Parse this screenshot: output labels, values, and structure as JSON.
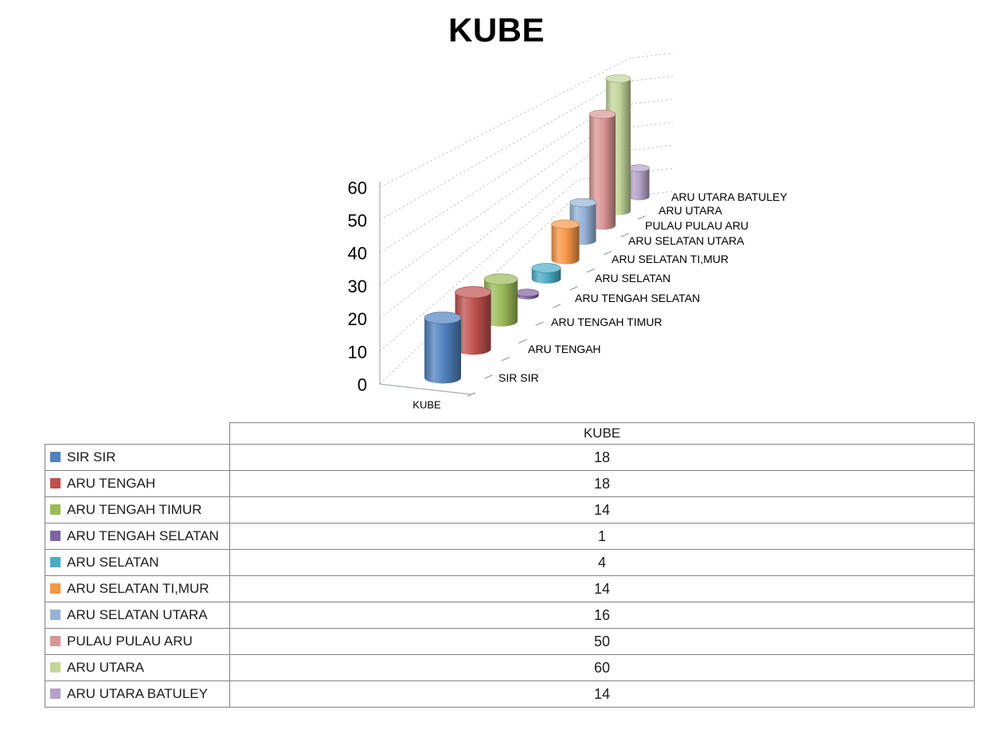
{
  "page": {
    "background": "#ffffff"
  },
  "chart_data": {
    "type": "bar",
    "style": "3d-cylinder",
    "title": "KUBE",
    "series": [
      {
        "name": "KUBE",
        "values": [
          18,
          18,
          14,
          1,
          4,
          14,
          16,
          50,
          60,
          14
        ]
      }
    ],
    "categories": [
      "SIR SIR",
      "ARU TENGAH",
      "ARU TENGAH TIMUR",
      "ARU TENGAH SELATAN",
      "ARU SELATAN",
      "ARU SELATAN TI,MUR",
      "ARU SELATAN UTARA",
      "PULAU PULAU ARU",
      "ARU UTARA",
      "ARU UTARA BATULEY"
    ],
    "colors": [
      "#4F81BD",
      "#C0504D",
      "#9BBB59",
      "#8064A2",
      "#4BACC6",
      "#F79646",
      "#95B3D7",
      "#D99694",
      "#C3D69B",
      "#B3A2C7"
    ],
    "ylim": [
      0,
      60
    ],
    "y_ticks": [
      0,
      10,
      20,
      30,
      40,
      50,
      60
    ],
    "grid": "dashed",
    "floor_axis_label": "KUBE",
    "legend_position": "table-below"
  },
  "table": {
    "value_column_header": "KUBE",
    "rows": [
      {
        "label": "SIR SIR",
        "value": 18
      },
      {
        "label": "ARU TENGAH",
        "value": 18
      },
      {
        "label": "ARU TENGAH TIMUR",
        "value": 14
      },
      {
        "label": "ARU TENGAH SELATAN",
        "value": 1
      },
      {
        "label": "ARU SELATAN",
        "value": 4
      },
      {
        "label": "ARU SELATAN TI,MUR",
        "value": 14
      },
      {
        "label": "ARU SELATAN UTARA",
        "value": 16
      },
      {
        "label": "PULAU PULAU ARU",
        "value": 50
      },
      {
        "label": "ARU UTARA",
        "value": 60
      },
      {
        "label": "ARU UTARA BATULEY",
        "value": 14
      }
    ]
  }
}
